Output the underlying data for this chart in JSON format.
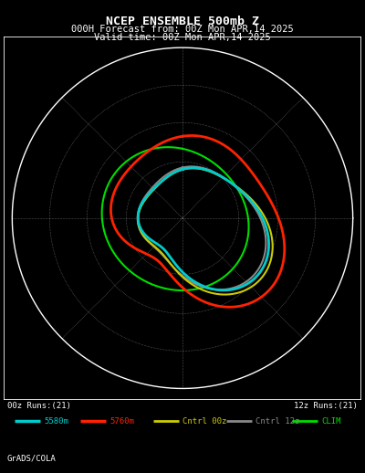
{
  "title_line1": "NCEP ENSEMBLE 500mb Z",
  "title_line2": "000H Forecast from: 00Z Mon APR,14 2025",
  "title_line3": "Valid time: 00Z Mon APR,14 2025",
  "background_color": "#000000",
  "text_color": "#ffffff",
  "border_color": "#ffffff",
  "label_left": "00z Runs:(21)",
  "label_right": "12z Runs:(21)",
  "legend_items": [
    {
      "label": "5580m",
      "color": "#00cccc",
      "lw": 2.0
    },
    {
      "label": "5760m",
      "color": "#ff2200",
      "lw": 2.0
    },
    {
      "label": "Cntrl 00z",
      "color": "#cccc00",
      "lw": 1.5
    },
    {
      "label": "Cntrl 12z",
      "color": "#888888",
      "lw": 1.5
    },
    {
      "label": "CLIM",
      "color": "#00dd00",
      "lw": 1.5
    }
  ],
  "watermark": "GrADS/COLA",
  "fig_width": 4.0,
  "fig_height": 5.18,
  "dpi": 100
}
